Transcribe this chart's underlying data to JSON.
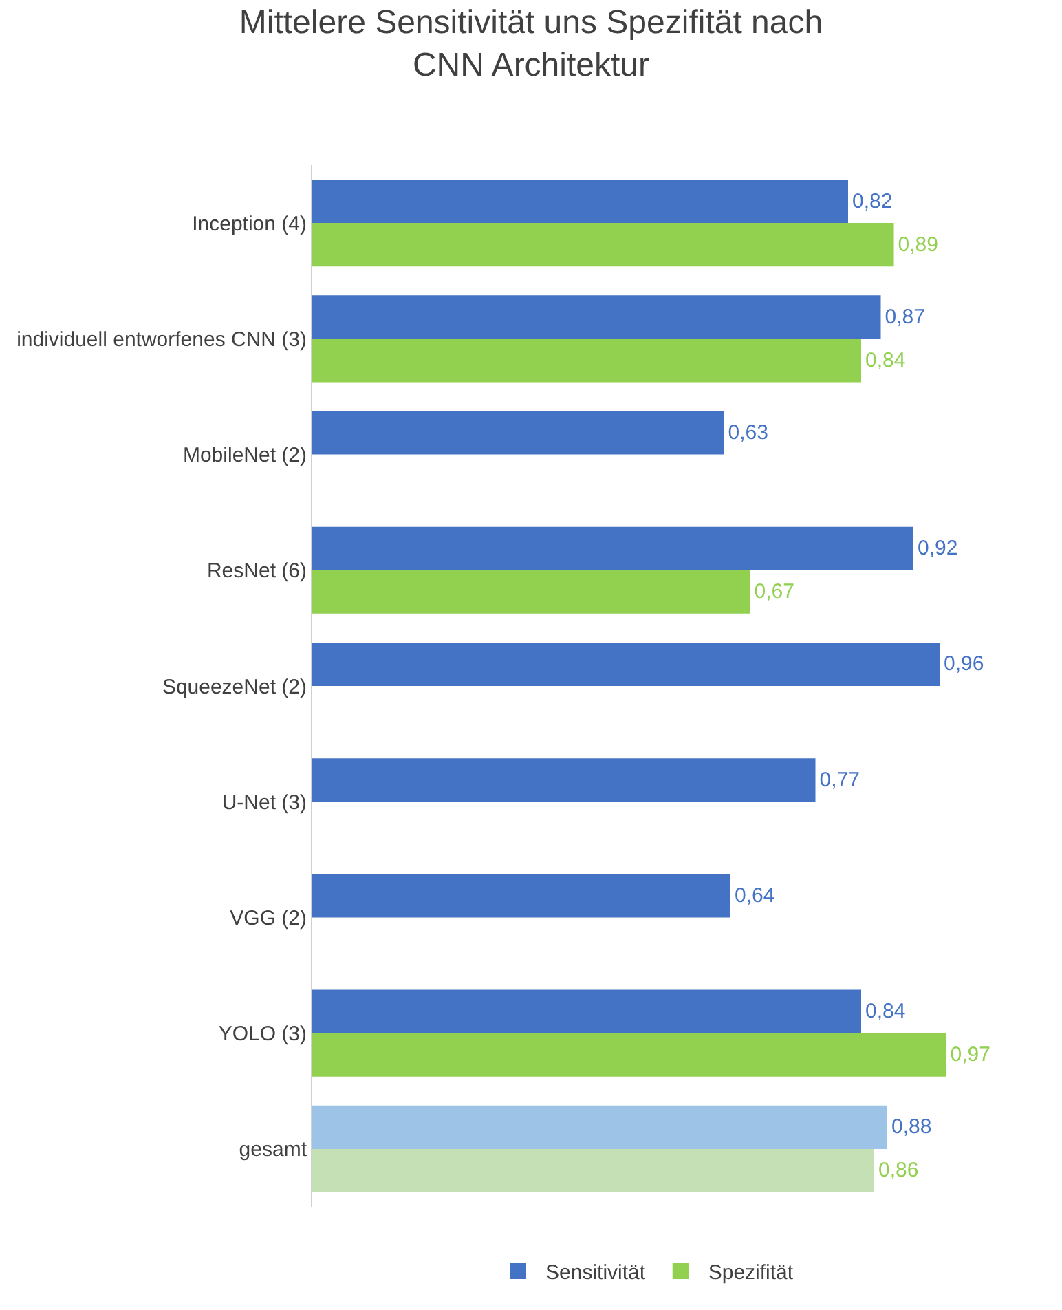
{
  "chart_data": {
    "type": "bar",
    "orientation": "horizontal",
    "title": "Mittelere Sensitivität uns Spezifität nach CNN Architektur",
    "categories": [
      "Inception (4)",
      "individuell entworfenes CNN (3)",
      "MobileNet (2)",
      "ResNet (6)",
      "SqueezeNet (2)",
      "U-Net (3)",
      "VGG (2)",
      "YOLO (3)",
      "gesamt"
    ],
    "series": [
      {
        "name": "Sensitivität",
        "color": "#4472c4",
        "colors": [
          "#4472c4",
          "#4472c4",
          "#4472c4",
          "#4472c4",
          "#4472c4",
          "#4472c4",
          "#4472c4",
          "#4472c4",
          "#9dc3e6"
        ],
        "values": [
          0.82,
          0.87,
          0.63,
          0.92,
          0.96,
          0.77,
          0.64,
          0.84,
          0.88
        ],
        "value_labels": [
          "0,82",
          "0,87",
          "0,63",
          "0,92",
          "0,96",
          "0,77",
          "0,64",
          "0,84",
          "0,88"
        ]
      },
      {
        "name": "Spezifität",
        "color": "#92d050",
        "colors": [
          "#92d050",
          "#92d050",
          "#92d050",
          "#92d050",
          "#92d050",
          "#92d050",
          "#92d050",
          "#92d050",
          "#c5e0b4"
        ],
        "values": [
          0.89,
          0.84,
          null,
          0.67,
          null,
          null,
          null,
          0.97,
          0.86
        ],
        "value_labels": [
          "0,89",
          "0,84",
          null,
          "0,67",
          null,
          null,
          null,
          "0,97",
          "0,86"
        ]
      }
    ],
    "tick_labels": "y",
    "grid": false,
    "legend": "bottom"
  }
}
